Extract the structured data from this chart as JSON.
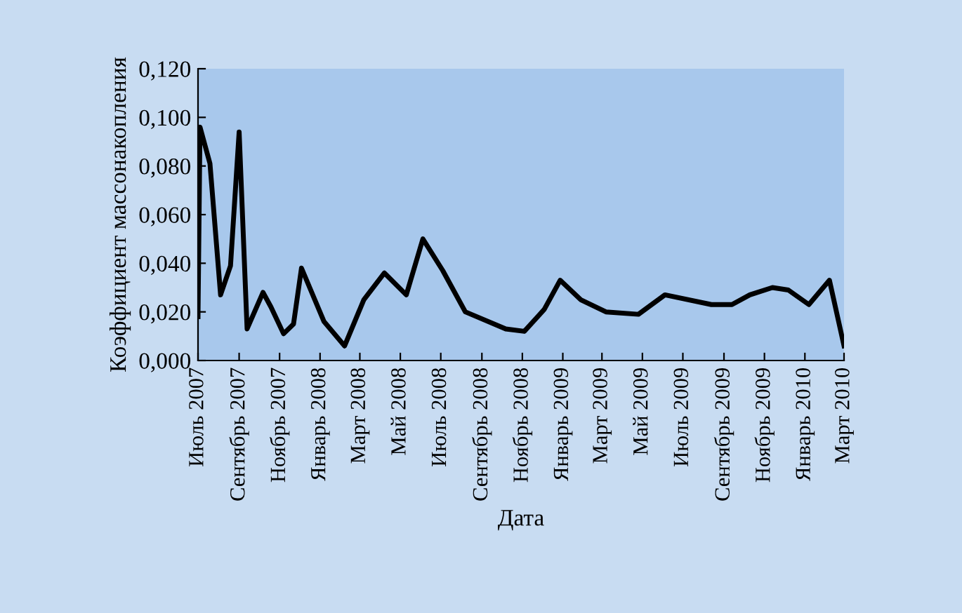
{
  "chart_data": {
    "type": "line",
    "xlabel": "Дата",
    "ylabel": "Коэффициент массонакопления",
    "x": [
      "2007-07-01",
      "2007-07-04",
      "2007-07-19",
      "2007-08-04",
      "2007-08-19",
      "2007-09-01",
      "2007-09-13",
      "2007-10-07",
      "2007-10-19",
      "2007-11-07",
      "2007-11-22",
      "2007-12-04",
      "2008-01-07",
      "2008-02-07",
      "2008-03-07",
      "2008-04-07",
      "2008-05-10",
      "2008-06-04",
      "2008-07-04",
      "2008-08-07",
      "2008-10-07",
      "2008-11-04",
      "2008-12-04",
      "2008-12-28",
      "2009-01-28",
      "2009-03-07",
      "2009-04-25",
      "2009-06-04",
      "2009-08-13",
      "2009-09-13",
      "2009-10-10",
      "2009-11-13",
      "2009-12-07",
      "2010-01-07",
      "2010-02-07",
      "2010-03-01"
    ],
    "series": [
      {
        "color": "#000000",
        "values": [
          0.018,
          0.096,
          0.081,
          0.027,
          0.039,
          0.094,
          0.013,
          0.028,
          0.022,
          0.011,
          0.015,
          0.038,
          0.016,
          0.006,
          0.025,
          0.036,
          0.027,
          0.05,
          0.037,
          0.02,
          0.013,
          0.012,
          0.021,
          0.033,
          0.025,
          0.02,
          0.019,
          0.027,
          0.023,
          0.023,
          0.027,
          0.03,
          0.029,
          0.023,
          0.033,
          0.006
        ]
      }
    ],
    "xlim": [
      "2007-07-01",
      "2010-03-01"
    ],
    "xticks": [
      {
        "value": "2007-07-01",
        "label": "Июль 2007"
      },
      {
        "value": "2007-09-01",
        "label": "Сентябрь 2007"
      },
      {
        "value": "2007-11-01",
        "label": "Ноябрь 2007"
      },
      {
        "value": "2008-01-01",
        "label": "Январь 2008"
      },
      {
        "value": "2008-03-01",
        "label": "Март 2008"
      },
      {
        "value": "2008-05-01",
        "label": "Май 2008"
      },
      {
        "value": "2008-07-01",
        "label": "Июль 2008"
      },
      {
        "value": "2008-09-01",
        "label": "Сентябрь 2008"
      },
      {
        "value": "2008-11-01",
        "label": "Ноябрь 2008"
      },
      {
        "value": "2009-01-01",
        "label": "Январь 2009"
      },
      {
        "value": "2009-03-01",
        "label": "Март 2009"
      },
      {
        "value": "2009-05-01",
        "label": "Май 2009"
      },
      {
        "value": "2009-07-01",
        "label": "Июль 2009"
      },
      {
        "value": "2009-09-01",
        "label": "Сентябрь 2009"
      },
      {
        "value": "2009-11-01",
        "label": "Ноябрь 2009"
      },
      {
        "value": "2010-01-01",
        "label": "Январь 2010"
      },
      {
        "value": "2010-03-01",
        "label": "Март 2010"
      }
    ],
    "ylim": [
      0,
      0.12
    ],
    "yticks": [
      {
        "value": 0,
        "label": "0,000"
      },
      {
        "value": 0.02,
        "label": "0,020"
      },
      {
        "value": 0.04,
        "label": "0,040"
      },
      {
        "value": 0.06,
        "label": "0,060"
      },
      {
        "value": 0.08,
        "label": "0,080"
      },
      {
        "value": 0.1,
        "label": "0,100"
      },
      {
        "value": 0.12,
        "label": "0,120"
      }
    ],
    "grid": false,
    "marker": "none",
    "line_style": "solid"
  }
}
